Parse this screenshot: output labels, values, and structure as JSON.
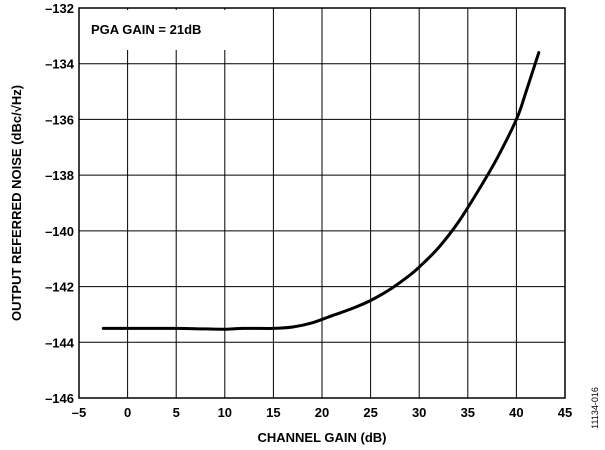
{
  "chart_data": {
    "type": "line",
    "title": "",
    "xlabel": "CHANNEL GAIN (dB)",
    "ylabel": "OUTPUT REFERRED NOISE (dBc/√Hz)",
    "xlim": [
      -5,
      45
    ],
    "ylim": [
      -146,
      -132
    ],
    "xticks": [
      -5,
      0,
      5,
      10,
      15,
      20,
      25,
      30,
      35,
      40,
      45
    ],
    "yticks": [
      -146,
      -144,
      -142,
      -140,
      -138,
      -136,
      -134,
      -132
    ],
    "xtick_labels": [
      "–5",
      "0",
      "5",
      "10",
      "15",
      "20",
      "25",
      "30",
      "35",
      "40",
      "45"
    ],
    "ytick_labels": [
      "–146",
      "–144",
      "–142",
      "–140",
      "–138",
      "–136",
      "–134",
      "–132"
    ],
    "grid": true,
    "annotation": "PGA GAIN = 21dB",
    "figure_id": "11134-016",
    "series": [
      {
        "color": "#000000",
        "x": [
          -2.5,
          0,
          5,
          8,
          10,
          12,
          15,
          17,
          19,
          21,
          23,
          25,
          27,
          29,
          30,
          32,
          34,
          36,
          38,
          40,
          41,
          42.3
        ],
        "y": [
          -143.5,
          -143.5,
          -143.5,
          -143.52,
          -143.53,
          -143.5,
          -143.5,
          -143.45,
          -143.3,
          -143.05,
          -142.8,
          -142.5,
          -142.1,
          -141.6,
          -141.3,
          -140.6,
          -139.7,
          -138.6,
          -137.4,
          -136.0,
          -135.0,
          -133.6
        ]
      }
    ]
  }
}
